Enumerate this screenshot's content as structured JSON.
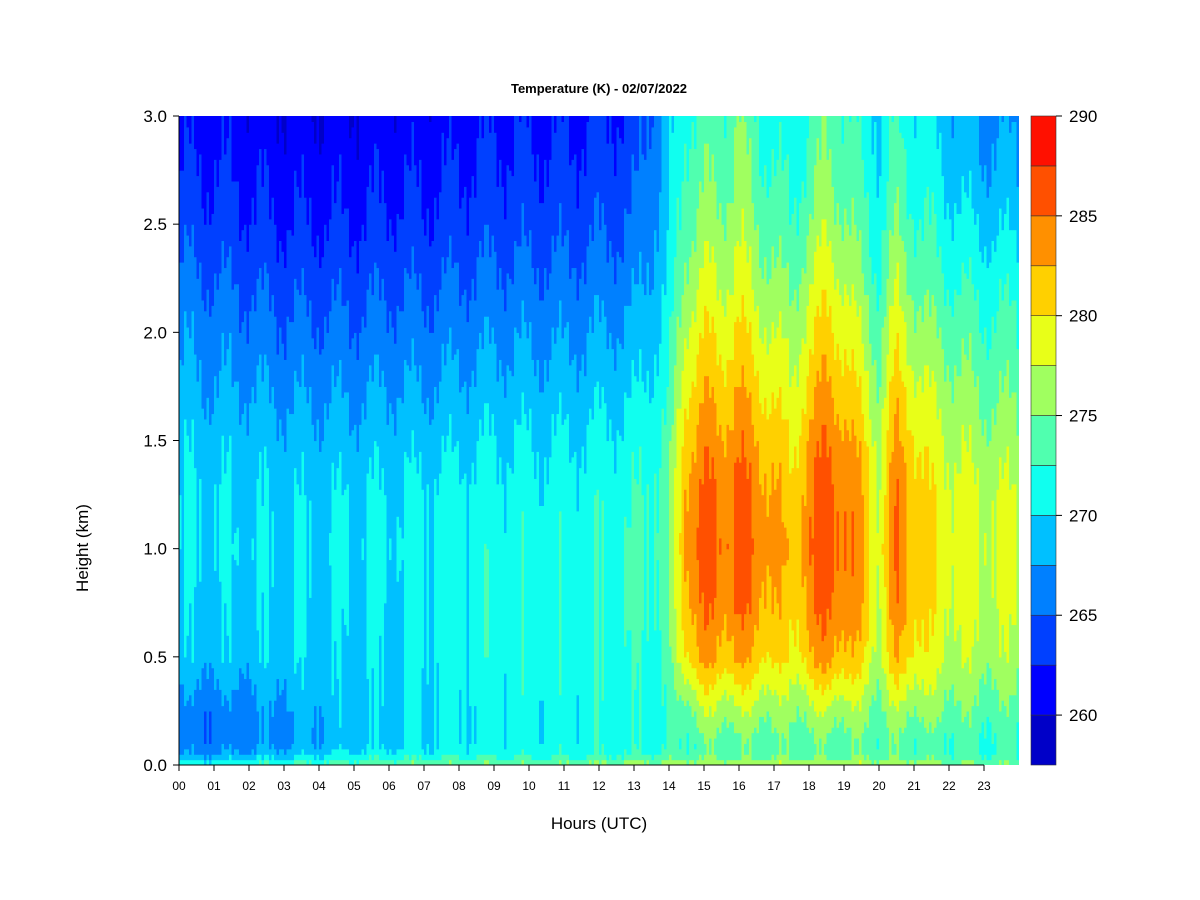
{
  "chart_data": {
    "type": "heatmap",
    "title": "Temperature (K) - 02/07/2022",
    "xlabel": "Hours (UTC)",
    "ylabel": "Height (km)",
    "xlim": [
      0,
      24
    ],
    "ylim": [
      0,
      3
    ],
    "x_ticks": [
      0,
      1,
      2,
      3,
      4,
      5,
      6,
      7,
      8,
      9,
      10,
      11,
      12,
      13,
      14,
      15,
      16,
      17,
      18,
      19,
      20,
      21,
      22,
      23
    ],
    "x_tick_labels": [
      "00",
      "01",
      "02",
      "03",
      "04",
      "05",
      "06",
      "07",
      "08",
      "09",
      "10",
      "11",
      "12",
      "13",
      "14",
      "15",
      "16",
      "17",
      "18",
      "19",
      "20",
      "21",
      "22",
      "23"
    ],
    "y_ticks": [
      0,
      0.5,
      1,
      1.5,
      2,
      2.5,
      3
    ],
    "y_tick_labels": [
      "0.0",
      "0.5",
      "1.0",
      "1.5",
      "2.0",
      "2.5",
      "3.0"
    ],
    "colorbar": {
      "range": [
        257.5,
        290
      ],
      "levels": [
        257.5,
        260,
        262.5,
        265,
        267.5,
        270,
        272.5,
        275,
        277.5,
        280,
        282.5,
        285,
        287.5,
        290
      ],
      "colors": [
        "#00007f",
        "#0000c8",
        "#0000ff",
        "#0040ff",
        "#0080ff",
        "#00c0ff",
        "#10ffef",
        "#50ffaf",
        "#a0ff60",
        "#e8ff18",
        "#ffd000",
        "#ff9000",
        "#ff5000",
        "#ff1000",
        "#c80000",
        "#800000"
      ],
      "tick_values": [
        260,
        265,
        270,
        275,
        280,
        285,
        290
      ],
      "tick_labels": [
        "260",
        "265",
        "270",
        "275",
        "280",
        "285",
        "290"
      ]
    },
    "hours": [
      0,
      1,
      2,
      3,
      4,
      5,
      6,
      7,
      8,
      9,
      10,
      11,
      12,
      13,
      14,
      14.5,
      15,
      15.5,
      16,
      16.5,
      17,
      17.5,
      18,
      18.5,
      19,
      19.5,
      20,
      20.5,
      21,
      21.5,
      22,
      23,
      24
    ],
    "heights_km": [
      0,
      0.05,
      0.1,
      0.25,
      0.5,
      0.75,
      1.0,
      1.25,
      1.5,
      1.75,
      2.0,
      2.25,
      2.5,
      2.75,
      3.0
    ],
    "temperature_K": [
      [
        272,
        267,
        266,
        266,
        269,
        269.5,
        270,
        270,
        269.5,
        268,
        267,
        265.5,
        264,
        262.5,
        261.5
      ],
      [
        272,
        267.5,
        266,
        266,
        269,
        269.5,
        270,
        270,
        269,
        267.5,
        266.5,
        265,
        263.5,
        262.5,
        261.5
      ],
      [
        272.5,
        268,
        266.5,
        266.5,
        269,
        269.5,
        270,
        269.5,
        269,
        267.5,
        266,
        264.5,
        263,
        262,
        261
      ],
      [
        273,
        269,
        267,
        267.5,
        269.5,
        269.5,
        270,
        269.5,
        268.5,
        267,
        265.5,
        264,
        262.5,
        261.5,
        260.5
      ],
      [
        273.5,
        270,
        268,
        268.5,
        269.5,
        269.5,
        270,
        269.5,
        268.5,
        267,
        265.5,
        264,
        262.5,
        261.5,
        260.5
      ],
      [
        274,
        270.5,
        269,
        269,
        269.5,
        270,
        270,
        270,
        268.5,
        267,
        265.5,
        264,
        262.5,
        261.5,
        260.5
      ],
      [
        274.5,
        271,
        269.5,
        269.5,
        270,
        270,
        270.5,
        270,
        269,
        267.5,
        266,
        264.5,
        263,
        262,
        261
      ],
      [
        275,
        271,
        270,
        270,
        270.5,
        270.5,
        270.5,
        270.5,
        269,
        267.5,
        266,
        264.5,
        263,
        262,
        261
      ],
      [
        275,
        271.5,
        270.5,
        270.5,
        271,
        271,
        271,
        271,
        269.5,
        268,
        266.5,
        265,
        263.5,
        262.5,
        261.5
      ],
      [
        275,
        271.5,
        271,
        271,
        271.5,
        271.5,
        271.5,
        271,
        270,
        268.5,
        267,
        265.5,
        264,
        263,
        262
      ],
      [
        275,
        271.5,
        271,
        271,
        271.5,
        271.5,
        271.5,
        271,
        270,
        268.5,
        267,
        265.5,
        264,
        263,
        262
      ],
      [
        275,
        272,
        271,
        271,
        271.5,
        271.5,
        271.5,
        271,
        270,
        268.5,
        267,
        265.5,
        264,
        263,
        262
      ],
      [
        275.5,
        272,
        271.5,
        271.5,
        272,
        272,
        272,
        271.5,
        270.5,
        269,
        267.5,
        266,
        264.5,
        263.5,
        262.5
      ],
      [
        276,
        272.5,
        271.5,
        271.5,
        272,
        272.5,
        272.5,
        272,
        271,
        269.5,
        268,
        266.5,
        265,
        264,
        263
      ],
      [
        276,
        273,
        272,
        272,
        273,
        273.5,
        274,
        274,
        273,
        272,
        271,
        270,
        269.5,
        269,
        268.5
      ],
      [
        276.5,
        273.5,
        273,
        275,
        281,
        283,
        284,
        283.5,
        282,
        280,
        278,
        276,
        274.5,
        273.5,
        272.5
      ],
      [
        277,
        274,
        274,
        277,
        283,
        285,
        286,
        285.5,
        284,
        282,
        280,
        278,
        276,
        274.5,
        273.5
      ],
      [
        277,
        274,
        274,
        276.5,
        282,
        284,
        285,
        284.5,
        283,
        281,
        279,
        277,
        275.5,
        274,
        273
      ],
      [
        277,
        274,
        274,
        277,
        283,
        285.5,
        286.5,
        286,
        284.5,
        282.5,
        280.5,
        278.5,
        277,
        276,
        275
      ],
      [
        277,
        274,
        274,
        276.5,
        281.5,
        283.5,
        284.5,
        284,
        282.5,
        280.5,
        278.5,
        276.5,
        275,
        273.5,
        272.5
      ],
      [
        277,
        274,
        274,
        276,
        280.5,
        282.5,
        283.5,
        283,
        281.5,
        279.5,
        277.5,
        275.5,
        274,
        272.5,
        271.5
      ],
      [
        277,
        274,
        274,
        275.5,
        279,
        280.5,
        281,
        280.5,
        279,
        277.5,
        276,
        274,
        272.5,
        271.5,
        270.5
      ],
      [
        277,
        274,
        274,
        276.5,
        282,
        284,
        285,
        284.5,
        283,
        281,
        279,
        277,
        275,
        273.5,
        272.5
      ],
      [
        277,
        274,
        274,
        277,
        283.5,
        285.5,
        286.5,
        286,
        285,
        283,
        281,
        279,
        277,
        275.5,
        274.5
      ],
      [
        277,
        274,
        274,
        276.5,
        282.5,
        284.5,
        285.5,
        285,
        283.5,
        281.5,
        279.5,
        277.5,
        275.5,
        274,
        273
      ],
      [
        277,
        274,
        274,
        276,
        280.5,
        282.5,
        283,
        282.5,
        281,
        279,
        277,
        275,
        273.5,
        272.5,
        271.5
      ],
      [
        276.5,
        274,
        273.5,
        274.5,
        277,
        278,
        278.5,
        278,
        277,
        275.5,
        274,
        272.5,
        271.5,
        270.5,
        270
      ],
      [
        277,
        274,
        274,
        276.5,
        282,
        284,
        285,
        284.5,
        283,
        281,
        279,
        277,
        275,
        273.5,
        272.5
      ],
      [
        276.5,
        273.5,
        273.5,
        276,
        280.5,
        282,
        282.5,
        282,
        280.5,
        278.5,
        276.5,
        274.5,
        273,
        272,
        271
      ],
      [
        276,
        273.5,
        273,
        275.5,
        278.5,
        279.5,
        280,
        279.5,
        278.5,
        277,
        275,
        273.5,
        272,
        271,
        270
      ],
      [
        275.5,
        273,
        273,
        275,
        277.5,
        278.5,
        279,
        278.5,
        277.5,
        276,
        274.5,
        272.5,
        271,
        269.5,
        268.5
      ],
      [
        275,
        272.5,
        272.5,
        274,
        276.5,
        277.5,
        278,
        277.5,
        276,
        274.5,
        273,
        271.5,
        269.5,
        268,
        267
      ],
      [
        275,
        272.5,
        272.5,
        274,
        276.5,
        277.5,
        278,
        277.5,
        276,
        274.5,
        273,
        271.5,
        269.5,
        268,
        267
      ]
    ]
  }
}
